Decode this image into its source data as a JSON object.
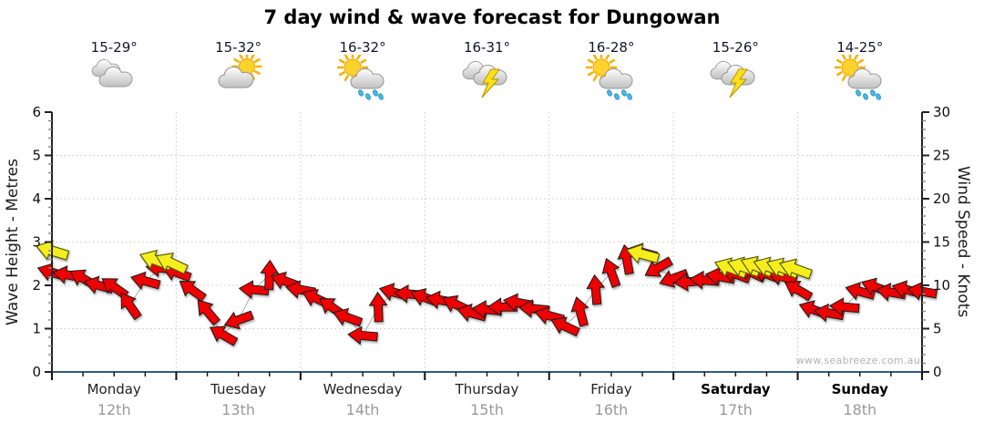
{
  "title": "7 day wind & wave forecast for Dungowan",
  "watermark": "www.seabreeze.com.au",
  "days": [
    {
      "name": "Monday",
      "date": "12th",
      "temp": "15-29°",
      "icon": "cloudy",
      "weekend": false
    },
    {
      "name": "Tuesday",
      "date": "13th",
      "temp": "15-32°",
      "icon": "partly-cloudy",
      "weekend": false
    },
    {
      "name": "Wednesday",
      "date": "14th",
      "temp": "16-32°",
      "icon": "sun-showers",
      "weekend": false
    },
    {
      "name": "Thursday",
      "date": "15th",
      "temp": "16-31°",
      "icon": "thunderstorm",
      "weekend": false
    },
    {
      "name": "Friday",
      "date": "16th",
      "temp": "16-28°",
      "icon": "sun-showers",
      "weekend": false
    },
    {
      "name": "Saturday",
      "date": "17th",
      "temp": "15-26°",
      "icon": "thunderstorm",
      "weekend": true
    },
    {
      "name": "Sunday",
      "date": "18th",
      "temp": "14-25°",
      "icon": "sun-showers",
      "weekend": true
    }
  ],
  "chart_data": {
    "type": "scatter",
    "marker": "wind-arrow",
    "title": "7 day wind & wave forecast for Dungowan",
    "x_unit": "hours",
    "x_range_hours": [
      0,
      168
    ],
    "left_axis": {
      "label": "Wave Height - Metres",
      "ticks": [
        0,
        1,
        2,
        3,
        4,
        5,
        6
      ],
      "range": [
        0,
        6
      ],
      "minor_step": 0.2
    },
    "right_axis": {
      "label": "Wind Speed - Knots",
      "ticks": [
        0,
        5,
        10,
        15,
        20,
        25,
        30
      ],
      "range": [
        0,
        30
      ],
      "minor_step": 1
    },
    "grid": {
      "horizontal_at_metres": [
        1,
        2,
        3,
        4,
        5
      ],
      "vertical_at_hours": [
        24,
        48,
        72,
        96,
        120,
        144
      ],
      "style": "dotted"
    },
    "hours": [
      0,
      3,
      6,
      9,
      12,
      15,
      18,
      21,
      24,
      27,
      30,
      33,
      36,
      39,
      42,
      45,
      48,
      51,
      54,
      57,
      60,
      63,
      66,
      69,
      72,
      75,
      78,
      81,
      84,
      87,
      90,
      93,
      96,
      99,
      102,
      105,
      108,
      111,
      114,
      117,
      120,
      123,
      126,
      129,
      132,
      135,
      138,
      141,
      144,
      147,
      150,
      153,
      156,
      159,
      162,
      165,
      168
    ],
    "wind_knots": [
      11.5,
      11.2,
      10.8,
      10.0,
      9.8,
      7.7,
      10.5,
      12.0,
      11.5,
      9.5,
      7.0,
      4.3,
      6.0,
      9.5,
      11.2,
      10.5,
      9.5,
      8.5,
      7.5,
      6.3,
      4.2,
      7.5,
      9.2,
      9.0,
      8.6,
      8.3,
      7.8,
      6.8,
      7.2,
      7.5,
      8.0,
      7.3,
      6.5,
      5.3,
      7.0,
      9.5,
      11.5,
      13.0,
      13.8,
      12.0,
      10.8,
      10.4,
      10.6,
      11.0,
      11.3,
      11.5,
      11.3,
      11.0,
      9.5,
      7.2,
      6.8,
      7.5,
      9.3,
      9.8,
      9.2,
      9.5,
      9.3
    ],
    "wind_dir_deg": [
      197,
      190,
      210,
      195,
      215,
      235,
      195,
      185,
      200,
      215,
      230,
      210,
      160,
      185,
      272,
      200,
      190,
      205,
      215,
      200,
      185,
      268,
      195,
      185,
      200,
      190,
      205,
      195,
      185,
      180,
      190,
      185,
      195,
      205,
      255,
      265,
      250,
      260,
      195,
      150,
      160,
      175,
      185,
      190,
      200,
      205,
      200,
      195,
      210,
      200,
      190,
      185,
      195,
      200,
      190,
      195,
      190
    ],
    "highlight_arrows": [
      {
        "hour": 0,
        "knots": 14.0,
        "dir": 197
      },
      {
        "hour": 20,
        "knots": 12.9,
        "dir": 200
      },
      {
        "hour": 23,
        "knots": 12.6,
        "dir": 205
      },
      {
        "hour": 114,
        "knots": 13.6,
        "dir": 195
      },
      {
        "hour": 131,
        "knots": 12.0,
        "dir": 200
      },
      {
        "hour": 133.5,
        "knots": 12.1,
        "dir": 198
      },
      {
        "hour": 136,
        "knots": 12.2,
        "dir": 202
      },
      {
        "hour": 138.5,
        "knots": 12.1,
        "dir": 199
      },
      {
        "hour": 141,
        "knots": 12.0,
        "dir": 201
      },
      {
        "hour": 143.5,
        "knots": 11.9,
        "dir": 200
      }
    ],
    "colors": {
      "arrow_normal": "#ee0000",
      "arrow_highlight": "#f5ee1e",
      "arrow_outline": "#1a1a1a",
      "axis_side": "#222222",
      "axis_bottom": "#2c5c7c",
      "grid": "#c8c8c8",
      "trend_line": "#aaaaaa"
    }
  }
}
